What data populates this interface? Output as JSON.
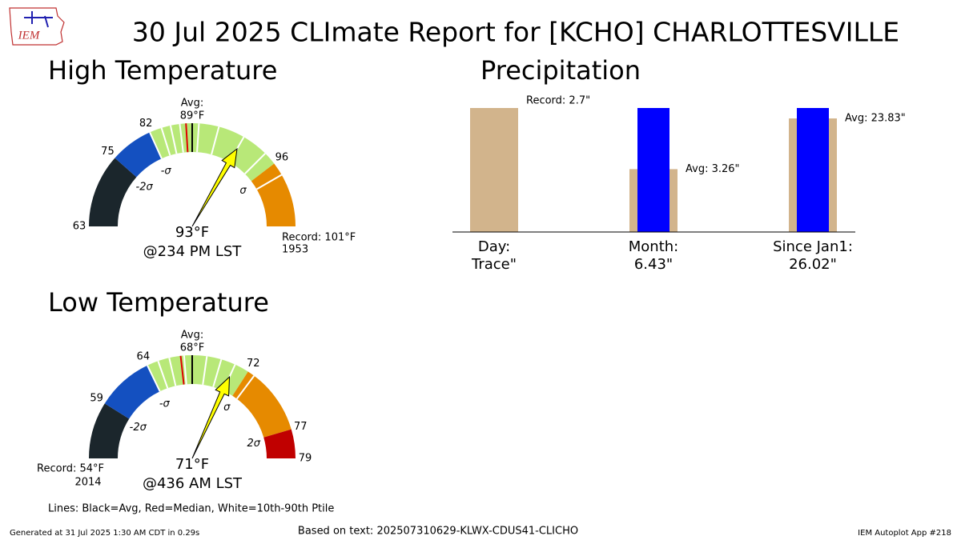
{
  "title": "30 Jul 2025 CLImate Report for [KCHO] CHARLOTTESVILLE",
  "logo": "IEM",
  "chart_data": [
    {
      "type": "gauge",
      "title": "High Temperature",
      "range": [
        63,
        101
      ],
      "avg_title": "Avg:",
      "avg": {
        "value": 89,
        "label": "89°F"
      },
      "median": 88,
      "percentiles": [
        82,
        84,
        85.5,
        87,
        89.5,
        91,
        93,
        95,
        97
      ],
      "ticks": [
        63,
        75,
        82,
        96
      ],
      "sigma": [
        {
          "value": 75,
          "label": "-2σ"
        },
        {
          "value": 82,
          "label": "-σ"
        },
        {
          "value": 96,
          "label": "σ"
        }
      ],
      "band_colors": [
        "#1b262c",
        "#1450c0",
        "#b8e878",
        "#e68a00"
      ],
      "record": {
        "value": 101,
        "label": "Record: 101°F"
      },
      "record_year": "1953",
      "observed": {
        "value": 93,
        "label": "93°F"
      },
      "observed_time": "@234 PM LST"
    },
    {
      "type": "gauge",
      "title": "Low Temperature",
      "range": [
        54,
        79
      ],
      "avg_title": "Avg:",
      "avg": {
        "value": 68,
        "label": "68°F"
      },
      "median": 67,
      "percentiles": [
        64,
        65,
        66,
        67.3,
        68,
        69,
        70,
        71,
        72.5
      ],
      "ticks": [
        59,
        64,
        72,
        77,
        79
      ],
      "sigma": [
        {
          "value": 59,
          "label": "-2σ"
        },
        {
          "value": 64,
          "label": "-σ"
        },
        {
          "value": 72,
          "label": "σ"
        },
        {
          "value": 77,
          "label": "2σ"
        }
      ],
      "band_colors": [
        "#1b262c",
        "#1450c0",
        "#b8e878",
        "#e68a00",
        "#c00000"
      ],
      "record": {
        "value": 54,
        "label": "Record: 54°F"
      },
      "record_year": "2014",
      "observed": {
        "value": 71,
        "label": "71°F"
      },
      "observed_time": "@436 AM LST"
    },
    {
      "type": "bar",
      "title": "Precipitation",
      "categories": [
        "Day:",
        "Month:",
        "Since Jan1:"
      ],
      "observed": {
        "values": [
          null,
          6.43,
          26.02
        ],
        "value_labels": [
          "Trace\"",
          "6.43\"",
          "26.02\""
        ],
        "color": "#0000ff"
      },
      "reference": {
        "values": [
          2.7,
          3.26,
          23.83
        ],
        "value_labels": [
          "Record: 2.7\"",
          "Avg: 3.26\"",
          "Avg: 23.83\""
        ],
        "color": "#d2b48c"
      }
    }
  ],
  "footnote": "Lines: Black=Avg, Red=Median, White=10th-90th Ptile",
  "generated": "Generated at 31 Jul 2025 1:30 AM CDT in 0.29s",
  "source": "Based on text: 202507310629-KLWX-CDUS41-CLICHO",
  "app": "IEM Autoplot App #218"
}
